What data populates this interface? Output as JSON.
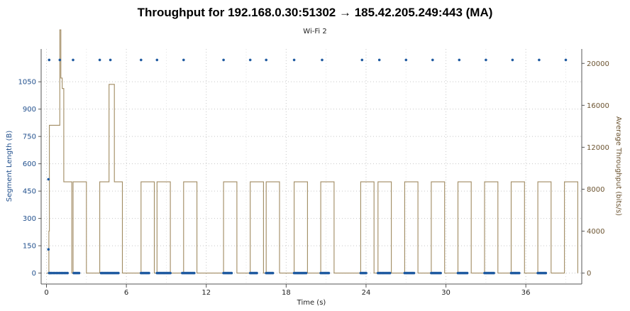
{
  "chart_data": {
    "type": "line",
    "title": "Throughput for 192.168.0.30:51302 → 185.42.205.249:443 (MA)",
    "subtitle": "Wi-Fi 2",
    "xlabel": "Time (s)",
    "ylabel_left": "Segment Length (B)",
    "ylabel_right": "Average Throughput (bits/s)",
    "xlim": [
      -0.4,
      40.2
    ],
    "ylim_left": [
      -60,
      1230
    ],
    "ylim_right": [
      -1043,
      21372
    ],
    "xticks": [
      "0",
      "6",
      "12",
      "18",
      "24",
      "30",
      "36"
    ],
    "yticks_left": [
      "0",
      "150",
      "300",
      "450",
      "600",
      "750",
      "900",
      "1050"
    ],
    "yticks_right": [
      "0",
      "4000",
      "8000",
      "12000",
      "16000",
      "20000"
    ],
    "grid": true,
    "colors": {
      "segment": "#1f5aa0",
      "throughput": "#a08a60",
      "left_axis": "#1f4e8c",
      "right_axis": "#6b5330"
    },
    "series": [
      {
        "axis": "left",
        "style": "dots",
        "points": [
          [
            0.15,
            130
          ],
          [
            0.15,
            515
          ],
          [
            0.2,
            0
          ],
          [
            0.28,
            0
          ],
          [
            0.38,
            0
          ],
          [
            0.5,
            0
          ],
          [
            0.62,
            0
          ],
          [
            0.74,
            0
          ],
          [
            0.86,
            0
          ],
          [
            0.98,
            0
          ],
          [
            1.1,
            0
          ],
          [
            1.22,
            0
          ],
          [
            1.34,
            0
          ],
          [
            1.46,
            0
          ],
          [
            1.58,
            0
          ],
          [
            2.05,
            0
          ],
          [
            2.15,
            0
          ],
          [
            2.25,
            0
          ],
          [
            2.35,
            0
          ],
          [
            2.45,
            0
          ],
          [
            4.1,
            0
          ],
          [
            4.2,
            0
          ],
          [
            4.3,
            0
          ],
          [
            4.4,
            0
          ],
          [
            4.5,
            0
          ],
          [
            4.6,
            0
          ],
          [
            4.7,
            0
          ],
          [
            4.8,
            0
          ],
          [
            4.9,
            0
          ],
          [
            5.0,
            0
          ],
          [
            5.1,
            0
          ],
          [
            5.2,
            0
          ],
          [
            5.3,
            0
          ],
          [
            5.4,
            0
          ],
          [
            7.1,
            0
          ],
          [
            7.2,
            0
          ],
          [
            7.3,
            0
          ],
          [
            7.4,
            0
          ],
          [
            7.5,
            0
          ],
          [
            7.6,
            0
          ],
          [
            7.7,
            0
          ],
          [
            8.3,
            0
          ],
          [
            8.4,
            0
          ],
          [
            8.5,
            0
          ],
          [
            8.6,
            0
          ],
          [
            8.7,
            0
          ],
          [
            8.8,
            0
          ],
          [
            8.9,
            0
          ],
          [
            9.0,
            0
          ],
          [
            9.1,
            0
          ],
          [
            9.2,
            0
          ],
          [
            9.3,
            0
          ],
          [
            10.2,
            0
          ],
          [
            10.3,
            0
          ],
          [
            10.4,
            0
          ],
          [
            10.5,
            0
          ],
          [
            10.6,
            0
          ],
          [
            10.7,
            0
          ],
          [
            10.8,
            0
          ],
          [
            10.9,
            0
          ],
          [
            11.0,
            0
          ],
          [
            11.1,
            0
          ],
          [
            13.3,
            0
          ],
          [
            13.4,
            0
          ],
          [
            13.5,
            0
          ],
          [
            13.6,
            0
          ],
          [
            13.7,
            0
          ],
          [
            13.8,
            0
          ],
          [
            13.9,
            0
          ],
          [
            15.3,
            0
          ],
          [
            15.4,
            0
          ],
          [
            15.5,
            0
          ],
          [
            15.6,
            0
          ],
          [
            15.7,
            0
          ],
          [
            15.8,
            0
          ],
          [
            16.5,
            0
          ],
          [
            16.6,
            0
          ],
          [
            16.7,
            0
          ],
          [
            16.8,
            0
          ],
          [
            16.9,
            0
          ],
          [
            17.0,
            0
          ],
          [
            18.6,
            0
          ],
          [
            18.7,
            0
          ],
          [
            18.8,
            0
          ],
          [
            18.9,
            0
          ],
          [
            19.0,
            0
          ],
          [
            19.1,
            0
          ],
          [
            19.2,
            0
          ],
          [
            19.3,
            0
          ],
          [
            19.4,
            0
          ],
          [
            19.5,
            0
          ],
          [
            20.6,
            0
          ],
          [
            20.7,
            0
          ],
          [
            20.8,
            0
          ],
          [
            20.9,
            0
          ],
          [
            21.0,
            0
          ],
          [
            21.1,
            0
          ],
          [
            21.2,
            0
          ],
          [
            23.6,
            0
          ],
          [
            23.7,
            0
          ],
          [
            23.8,
            0
          ],
          [
            23.9,
            0
          ],
          [
            24.0,
            0
          ],
          [
            24.9,
            0
          ],
          [
            25.0,
            0
          ],
          [
            25.1,
            0
          ],
          [
            25.2,
            0
          ],
          [
            25.3,
            0
          ],
          [
            25.4,
            0
          ],
          [
            25.5,
            0
          ],
          [
            25.6,
            0
          ],
          [
            25.7,
            0
          ],
          [
            25.8,
            0
          ],
          [
            26.9,
            0
          ],
          [
            27.0,
            0
          ],
          [
            27.1,
            0
          ],
          [
            27.2,
            0
          ],
          [
            27.3,
            0
          ],
          [
            27.4,
            0
          ],
          [
            27.5,
            0
          ],
          [
            27.6,
            0
          ],
          [
            28.9,
            0
          ],
          [
            29.0,
            0
          ],
          [
            29.1,
            0
          ],
          [
            29.2,
            0
          ],
          [
            29.3,
            0
          ],
          [
            29.4,
            0
          ],
          [
            29.5,
            0
          ],
          [
            29.6,
            0
          ],
          [
            30.9,
            0
          ],
          [
            31.0,
            0
          ],
          [
            31.1,
            0
          ],
          [
            31.2,
            0
          ],
          [
            31.3,
            0
          ],
          [
            31.4,
            0
          ],
          [
            31.5,
            0
          ],
          [
            31.6,
            0
          ],
          [
            32.9,
            0
          ],
          [
            33.0,
            0
          ],
          [
            33.1,
            0
          ],
          [
            33.2,
            0
          ],
          [
            33.3,
            0
          ],
          [
            33.4,
            0
          ],
          [
            33.5,
            0
          ],
          [
            33.6,
            0
          ],
          [
            34.9,
            0
          ],
          [
            35.0,
            0
          ],
          [
            35.1,
            0
          ],
          [
            35.2,
            0
          ],
          [
            35.3,
            0
          ],
          [
            35.4,
            0
          ],
          [
            35.5,
            0
          ],
          [
            36.9,
            0
          ],
          [
            37.0,
            0
          ],
          [
            37.1,
            0
          ],
          [
            37.2,
            0
          ],
          [
            37.3,
            0
          ],
          [
            37.4,
            0
          ],
          [
            37.5,
            0
          ],
          [
            0.2,
            1170
          ],
          [
            1.0,
            1170
          ],
          [
            2.0,
            1170
          ],
          [
            4.0,
            1170
          ],
          [
            4.8,
            1170
          ],
          [
            7.1,
            1170
          ],
          [
            8.3,
            1170
          ],
          [
            10.3,
            1170
          ],
          [
            13.3,
            1170
          ],
          [
            15.3,
            1170
          ],
          [
            16.5,
            1170
          ],
          [
            18.6,
            1170
          ],
          [
            20.7,
            1170
          ],
          [
            23.7,
            1170
          ],
          [
            25.0,
            1170
          ],
          [
            27.0,
            1170
          ],
          [
            29.0,
            1170
          ],
          [
            31.0,
            1170
          ],
          [
            33.0,
            1170
          ],
          [
            35.0,
            1170
          ],
          [
            37.0,
            1170
          ],
          [
            39.0,
            1170
          ]
        ]
      },
      {
        "axis": "right",
        "style": "step",
        "points": [
          [
            0.0,
            0
          ],
          [
            0.18,
            0
          ],
          [
            0.18,
            4000
          ],
          [
            0.22,
            4000
          ],
          [
            0.22,
            14100
          ],
          [
            1.0,
            14100
          ],
          [
            1.0,
            23200
          ],
          [
            1.08,
            23200
          ],
          [
            1.08,
            18600
          ],
          [
            1.18,
            18600
          ],
          [
            1.18,
            17600
          ],
          [
            1.3,
            17600
          ],
          [
            1.3,
            8700
          ],
          [
            1.9,
            8700
          ],
          [
            1.9,
            0
          ],
          [
            2.0,
            0
          ],
          [
            2.0,
            8700
          ],
          [
            3.0,
            8700
          ],
          [
            3.0,
            0
          ],
          [
            4.0,
            0
          ],
          [
            4.0,
            8700
          ],
          [
            4.7,
            8700
          ],
          [
            4.7,
            18000
          ],
          [
            5.1,
            18000
          ],
          [
            5.1,
            8700
          ],
          [
            5.7,
            8700
          ],
          [
            5.7,
            0
          ],
          [
            7.1,
            0
          ],
          [
            7.1,
            8700
          ],
          [
            8.1,
            8700
          ],
          [
            8.1,
            0
          ],
          [
            8.3,
            0
          ],
          [
            8.3,
            8700
          ],
          [
            9.3,
            8700
          ],
          [
            9.3,
            0
          ],
          [
            10.3,
            0
          ],
          [
            10.3,
            8700
          ],
          [
            11.3,
            8700
          ],
          [
            11.3,
            0
          ],
          [
            13.3,
            0
          ],
          [
            13.3,
            8700
          ],
          [
            14.3,
            8700
          ],
          [
            14.3,
            0
          ],
          [
            15.3,
            0
          ],
          [
            15.3,
            8700
          ],
          [
            16.3,
            8700
          ],
          [
            16.3,
            0
          ],
          [
            16.5,
            0
          ],
          [
            16.5,
            8700
          ],
          [
            17.5,
            8700
          ],
          [
            17.5,
            0
          ],
          [
            18.6,
            0
          ],
          [
            18.6,
            8700
          ],
          [
            19.6,
            8700
          ],
          [
            19.6,
            0
          ],
          [
            20.6,
            0
          ],
          [
            20.6,
            8700
          ],
          [
            21.6,
            8700
          ],
          [
            21.6,
            0
          ],
          [
            23.6,
            0
          ],
          [
            23.6,
            8700
          ],
          [
            24.6,
            8700
          ],
          [
            24.6,
            0
          ],
          [
            24.9,
            0
          ],
          [
            24.9,
            8700
          ],
          [
            25.9,
            8700
          ],
          [
            25.9,
            0
          ],
          [
            26.9,
            0
          ],
          [
            26.9,
            8700
          ],
          [
            27.9,
            8700
          ],
          [
            27.9,
            0
          ],
          [
            28.9,
            0
          ],
          [
            28.9,
            8700
          ],
          [
            29.9,
            8700
          ],
          [
            29.9,
            0
          ],
          [
            30.9,
            0
          ],
          [
            30.9,
            8700
          ],
          [
            31.9,
            8700
          ],
          [
            31.9,
            0
          ],
          [
            32.9,
            0
          ],
          [
            32.9,
            8700
          ],
          [
            33.9,
            8700
          ],
          [
            33.9,
            0
          ],
          [
            34.9,
            0
          ],
          [
            34.9,
            8700
          ],
          [
            35.9,
            8700
          ],
          [
            35.9,
            0
          ],
          [
            36.9,
            0
          ],
          [
            36.9,
            8700
          ],
          [
            37.9,
            8700
          ],
          [
            37.9,
            0
          ],
          [
            38.9,
            0
          ],
          [
            38.9,
            8700
          ],
          [
            39.9,
            8700
          ],
          [
            39.9,
            0
          ]
        ]
      }
    ]
  }
}
